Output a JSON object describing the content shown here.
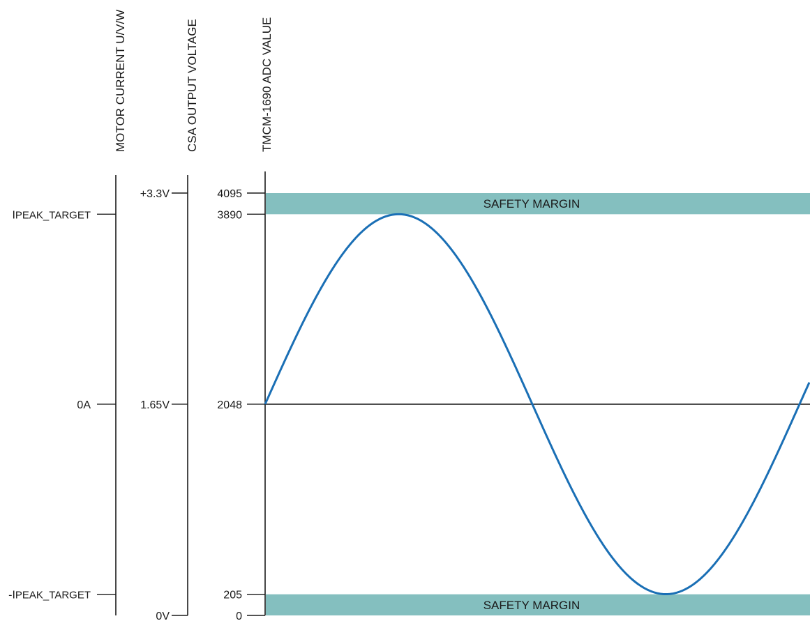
{
  "axes": {
    "motor_current": {
      "title": "MOTOR CURRENT U/V/W",
      "ticks": [
        {
          "level": 3890,
          "label_main": "I",
          "label_sub": "PEAK_TARGET"
        },
        {
          "level": 2048,
          "label_main": "0A",
          "label_sub": ""
        },
        {
          "level": 205,
          "label_main": "-I",
          "label_sub": "PEAK_TARGET"
        }
      ]
    },
    "csa_output_voltage": {
      "title": "CSA OUTPUT VOLTAGE",
      "ticks": [
        {
          "level": 4095,
          "label": "+3.3V"
        },
        {
          "level": 2048,
          "label": "1.65V"
        },
        {
          "level": 0,
          "label": "0V"
        }
      ]
    },
    "adc_value": {
      "title": "TMCM-1690 ADC VALUE",
      "ticks": [
        {
          "level": 4095,
          "label": "4095"
        },
        {
          "level": 3890,
          "label": "3890"
        },
        {
          "level": 2048,
          "label": "2048"
        },
        {
          "level": 205,
          "label": "205"
        },
        {
          "level": 0,
          "label": "0"
        }
      ]
    }
  },
  "safety_margins": [
    {
      "label": "SAFETY MARGIN",
      "from": 3890,
      "to": 4095
    },
    {
      "label": "SAFETY MARGIN",
      "from": 0,
      "to": 205
    }
  ],
  "waveform": {
    "type": "sine",
    "center": 2048,
    "amplitude": 1842,
    "cycles_shown": 1.07,
    "color": "#1a6fb5"
  },
  "colors": {
    "margin_fill": "#84bfbf",
    "axis": "#1a1a1a"
  }
}
